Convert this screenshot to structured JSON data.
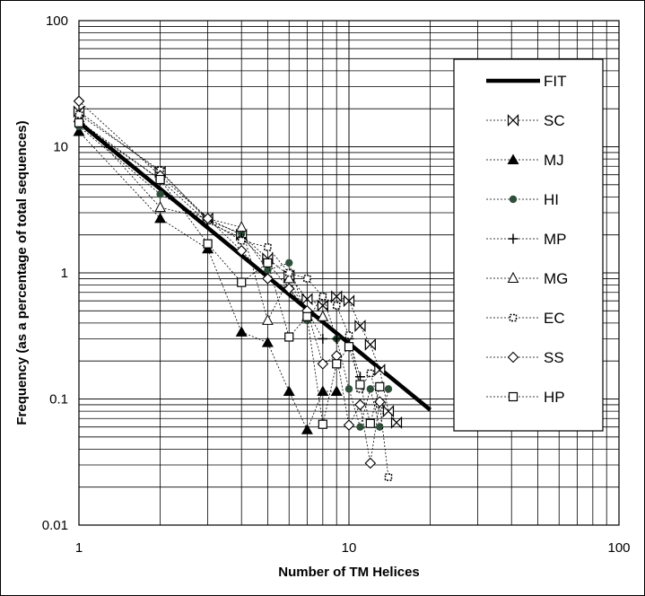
{
  "chart_data": {
    "type": "scatter",
    "title": "",
    "xlabel": "Number of TM Helices",
    "ylabel": "Frequency (as a percentage of total sequences)",
    "xscale": "log",
    "yscale": "log",
    "xlim": [
      1,
      100
    ],
    "ylim": [
      0.01,
      100
    ],
    "x_ticks": [
      "1",
      "10",
      "100"
    ],
    "y_ticks": [
      "100",
      "10",
      "1",
      "0.1",
      "0.01"
    ],
    "grid": true,
    "legend_position": "right",
    "series": [
      {
        "name": "FIT",
        "marker": "none",
        "line": "solid-thick",
        "points": [
          [
            1,
            15.6
          ],
          [
            20,
            0.082
          ]
        ]
      },
      {
        "name": "SC",
        "marker": "bowtie",
        "line": "dotted",
        "points": [
          [
            1,
            19
          ],
          [
            2,
            6.3
          ],
          [
            3,
            2.7
          ],
          [
            4,
            2.0
          ],
          [
            5,
            1.3
          ],
          [
            6,
            0.95
          ],
          [
            7,
            0.62
          ],
          [
            8,
            0.55
          ],
          [
            9,
            0.65
          ],
          [
            10,
            0.6
          ],
          [
            11,
            0.38
          ],
          [
            12,
            0.27
          ],
          [
            13,
            0.17
          ],
          [
            14,
            0.08
          ],
          [
            15,
            0.065
          ]
        ]
      },
      {
        "name": "MJ",
        "marker": "filled-triangle",
        "line": "dotted",
        "points": [
          [
            1,
            13.2
          ],
          [
            2,
            2.7
          ],
          [
            3,
            1.55
          ],
          [
            4,
            0.34
          ],
          [
            5,
            0.28
          ],
          [
            6,
            0.115
          ],
          [
            7,
            0.057
          ],
          [
            8,
            0.115
          ],
          [
            9,
            0.115
          ]
        ]
      },
      {
        "name": "HI",
        "marker": "filled-circle",
        "line": "dotted",
        "points": [
          [
            1,
            14.5
          ],
          [
            2,
            4.2
          ],
          [
            3,
            2.6
          ],
          [
            4,
            2.05
          ],
          [
            5,
            1.05
          ],
          [
            6,
            1.2
          ],
          [
            7,
            0.42
          ],
          [
            8,
            0.66
          ],
          [
            9,
            0.3
          ],
          [
            10,
            0.12
          ],
          [
            11,
            0.06
          ],
          [
            12,
            0.12
          ],
          [
            13,
            0.06
          ],
          [
            14,
            0.12
          ]
        ]
      },
      {
        "name": "MP",
        "marker": "plus",
        "line": "dotted",
        "points": [
          [
            1,
            16
          ],
          [
            2,
            5.5
          ],
          [
            3,
            2.5
          ],
          [
            4,
            1.9
          ],
          [
            5,
            1.2
          ],
          [
            6,
            0.75
          ],
          [
            7,
            0.5
          ],
          [
            8,
            0.3
          ],
          [
            9,
            0.3
          ],
          [
            10,
            0.3
          ],
          [
            11,
            0.15
          ]
        ]
      },
      {
        "name": "MG",
        "marker": "open-triangle",
        "line": "dotted",
        "points": [
          [
            1,
            17
          ],
          [
            2,
            3.3
          ],
          [
            3,
            2.7
          ],
          [
            4,
            2.3
          ],
          [
            5,
            0.42
          ],
          [
            6,
            0.9
          ],
          [
            7,
            0.45
          ],
          [
            8,
            0.45
          ]
        ]
      },
      {
        "name": "EC",
        "marker": "small-square",
        "line": "dotted",
        "points": [
          [
            1,
            18
          ],
          [
            2,
            6.5
          ],
          [
            3,
            2.6
          ],
          [
            4,
            1.8
          ],
          [
            5,
            1.6
          ],
          [
            6,
            1.0
          ],
          [
            7,
            0.9
          ],
          [
            8,
            0.65
          ],
          [
            9,
            0.55
          ],
          [
            10,
            0.32
          ],
          [
            11,
            0.12
          ],
          [
            12,
            0.16
          ],
          [
            13,
            0.09
          ],
          [
            14,
            0.024
          ]
        ]
      },
      {
        "name": "SS",
        "marker": "open-diamond",
        "line": "dotted",
        "points": [
          [
            1,
            23
          ],
          [
            2,
            5.9
          ],
          [
            3,
            2.7
          ],
          [
            4,
            1.5
          ],
          [
            5,
            0.9
          ],
          [
            6,
            0.75
          ],
          [
            7,
            0.5
          ],
          [
            8,
            0.19
          ],
          [
            9,
            0.22
          ],
          [
            10,
            0.062
          ],
          [
            11,
            0.09
          ],
          [
            12,
            0.031
          ],
          [
            13,
            0.095
          ]
        ]
      },
      {
        "name": "HP",
        "marker": "open-square",
        "line": "dotted",
        "points": [
          [
            1,
            15.5
          ],
          [
            2,
            5.5
          ],
          [
            3,
            1.7
          ],
          [
            4,
            0.84
          ],
          [
            5,
            1.2
          ],
          [
            6,
            0.31
          ],
          [
            7,
            0.45
          ],
          [
            8,
            0.063
          ],
          [
            9,
            0.19
          ],
          [
            10,
            0.26
          ],
          [
            11,
            0.13
          ],
          [
            12,
            0.064
          ],
          [
            13,
            0.125
          ]
        ]
      }
    ]
  }
}
